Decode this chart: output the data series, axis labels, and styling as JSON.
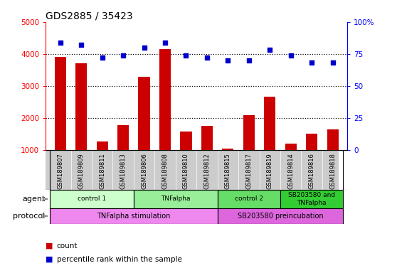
{
  "title": "GDS2885 / 35423",
  "samples": [
    "GSM189807",
    "GSM189809",
    "GSM189811",
    "GSM189813",
    "GSM189806",
    "GSM189808",
    "GSM189810",
    "GSM189812",
    "GSM189815",
    "GSM189817",
    "GSM189819",
    "GSM189814",
    "GSM189816",
    "GSM189818"
  ],
  "counts": [
    3900,
    3700,
    1270,
    1780,
    3280,
    4150,
    1580,
    1760,
    1050,
    2080,
    2670,
    1200,
    1500,
    1650
  ],
  "percentile_ranks": [
    84,
    82,
    72,
    74,
    80,
    84,
    74,
    72,
    70,
    70,
    78,
    74,
    68,
    68
  ],
  "ylim_left": [
    1000,
    5000
  ],
  "ylim_right": [
    0,
    100
  ],
  "yticks_left": [
    1000,
    2000,
    3000,
    4000,
    5000
  ],
  "yticks_right": [
    0,
    25,
    50,
    75,
    100
  ],
  "bar_color": "#cc0000",
  "scatter_color": "#0000cc",
  "agent_groups": [
    {
      "label": "control 1",
      "start": 0,
      "end": 4,
      "color": "#ccffcc"
    },
    {
      "label": "TNFalpha",
      "start": 4,
      "end": 8,
      "color": "#99ee99"
    },
    {
      "label": "control 2",
      "start": 8,
      "end": 11,
      "color": "#66dd66"
    },
    {
      "label": "SB203580 and\nTNFalpha",
      "start": 11,
      "end": 14,
      "color": "#33cc33"
    }
  ],
  "protocol_groups": [
    {
      "label": "TNFalpha stimulation",
      "start": 0,
      "end": 8,
      "color": "#ee88ee"
    },
    {
      "label": "SB203580 preincubation",
      "start": 8,
      "end": 14,
      "color": "#dd66dd"
    }
  ],
  "bg_color": "#ffffff",
  "sample_bg_color": "#cccccc"
}
